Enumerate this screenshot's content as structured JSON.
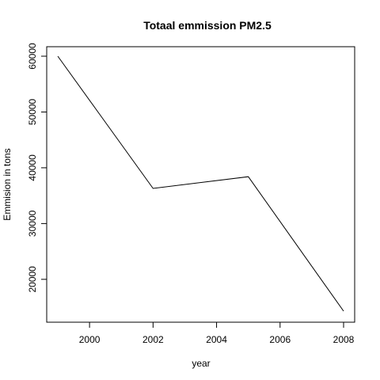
{
  "chart_data": {
    "type": "line",
    "title": "Totaal emmission PM2.5",
    "xlabel": "year",
    "ylabel": "Emmision in tons",
    "x": [
      1999,
      2002,
      2005,
      2008
    ],
    "series": [
      {
        "values": [
          60000,
          36300,
          38400,
          14300
        ]
      }
    ],
    "xlim": [
      1999,
      2008
    ],
    "ylim": [
      14300,
      60000
    ],
    "xticks": [
      2000,
      2002,
      2004,
      2006,
      2008
    ],
    "yticks": [
      20000,
      30000,
      40000,
      50000,
      60000
    ],
    "xtick_labels": [
      "2000",
      "2002",
      "2004",
      "2006",
      "2008"
    ],
    "ytick_labels": [
      "20000",
      "30000",
      "40000",
      "50000",
      "60000"
    ],
    "grid": false,
    "legend": "none",
    "line_color": "#000000"
  }
}
